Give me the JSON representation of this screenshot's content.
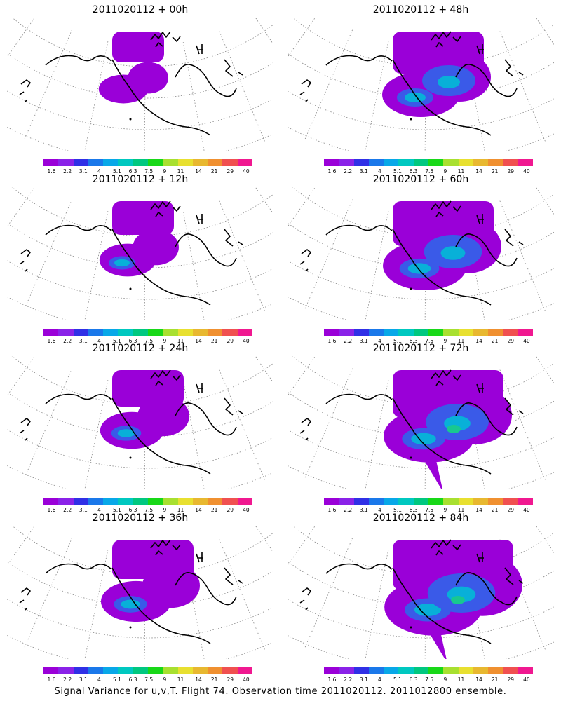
{
  "panels": [
    {
      "title": "2011020112 + 00h",
      "level": 1
    },
    {
      "title": "2011020112 + 48h",
      "level": 5
    },
    {
      "title": "2011020112 + 12h",
      "level": 2
    },
    {
      "title": "2011020112 + 60h",
      "level": 6
    },
    {
      "title": "2011020112 + 24h",
      "level": 3
    },
    {
      "title": "2011020112 + 72h",
      "level": 7
    },
    {
      "title": "2011020112 + 36h",
      "level": 4
    },
    {
      "title": "2011020112 + 84h",
      "level": 8
    }
  ],
  "colorbar": {
    "labels": [
      "1.6",
      "2.2",
      "3.1",
      "4",
      "5.1",
      "6.3",
      "7.5",
      "9",
      "11",
      "14",
      "21",
      "29",
      "40"
    ],
    "colors": [
      "#9a00d8",
      "#8a22e8",
      "#3030e6",
      "#1a78ea",
      "#08a8e8",
      "#00c8c0",
      "#00c880",
      "#18d818",
      "#a8e030",
      "#e8e030",
      "#e8b830",
      "#f09030",
      "#f05050",
      "#f01890"
    ]
  },
  "footer": "Signal Variance for u,v,T. Flight 74. Observation time 2011020112. 2011012800 ensemble.",
  "styles": {
    "coast": "#000000",
    "grid": "#888888",
    "base": "#9a00d8",
    "mid": "#3a5ae8",
    "core": "#08b0d8",
    "hot": "#18c890"
  }
}
